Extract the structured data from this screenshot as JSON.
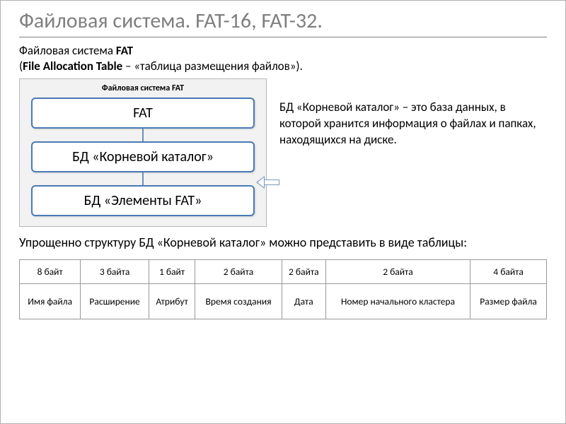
{
  "title": "Файловая система. FAT-16, FAT-32.",
  "intro": {
    "line1_a": "Файловая система ",
    "line1_b": "FAT",
    "line2_a": "(",
    "line2_b": "File Allocation Table",
    "line2_c": " – «таблица размещения файлов»)."
  },
  "diagram": {
    "caption": "Файловая система FAT",
    "nodes": [
      "FAT",
      "БД «Корневой каталог»",
      "БД «Элементы FAT»"
    ],
    "node_border": "#4a7ab6",
    "node_bg": "#ffffff",
    "panel_bg": "#f2f2f2",
    "connector_color": "#6d8fb8"
  },
  "callout": "БД «Корневой каталог» – это база данных, в которой хранится информация о файлах и папках, находящихся на диске.",
  "para": "Упрощенно структуру БД «Корневой каталог» можно представить в виде таблицы:",
  "table": {
    "columns": [
      {
        "size": "8 байт",
        "name": "Имя файла"
      },
      {
        "size": "3 байта",
        "name": "Расширение"
      },
      {
        "size": "1 байт",
        "name": "Атрибут"
      },
      {
        "size": "2 байта",
        "name": "Время создания"
      },
      {
        "size": "2 байта",
        "name": "Дата"
      },
      {
        "size": "2 байта",
        "name": "Номер начального кластера"
      },
      {
        "size": "4 байта",
        "name": "Размер файла"
      }
    ],
    "border_color": "#999999"
  }
}
